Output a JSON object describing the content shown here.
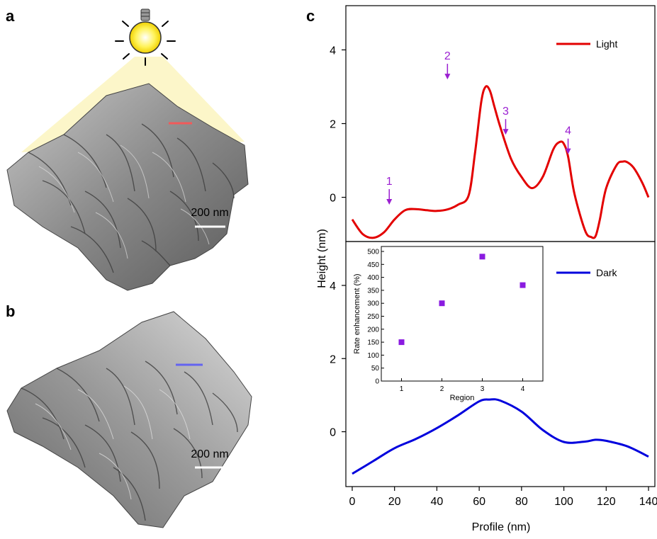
{
  "panels": {
    "a": {
      "letter": "a",
      "scale_bar_label": "200 nm",
      "marker_color": "#f25a5a"
    },
    "b": {
      "letter": "b",
      "scale_bar_label": "200 nm",
      "marker_color": "#6464f0"
    },
    "c": {
      "letter": "c"
    }
  },
  "chart_data": [
    {
      "id": "light-profile",
      "type": "line",
      "series": [
        {
          "name": "Light",
          "color": "#e30000",
          "x": [
            0,
            5,
            10,
            15,
            20,
            25,
            30,
            35,
            40,
            45,
            50,
            55,
            58,
            61,
            63,
            65,
            67,
            70,
            75,
            80,
            85,
            90,
            95,
            98,
            100,
            102,
            105,
            110,
            113,
            115,
            117,
            120,
            125,
            128,
            130,
            133,
            137,
            140
          ],
          "y": [
            -0.6,
            -1.0,
            -1.1,
            -0.95,
            -0.6,
            -0.35,
            -0.32,
            -0.35,
            -0.37,
            -0.33,
            -0.2,
            0.05,
            1.2,
            2.6,
            3.0,
            2.9,
            2.5,
            1.9,
            1.05,
            0.55,
            0.25,
            0.55,
            1.3,
            1.5,
            1.45,
            1.1,
            0.1,
            -0.9,
            -1.08,
            -1.05,
            -0.6,
            0.25,
            0.88,
            0.97,
            0.95,
            0.8,
            0.4,
            0.0
          ]
        }
      ],
      "annotations": [
        {
          "label": "1",
          "x": 17.5,
          "y": -0.2
        },
        {
          "label": "2",
          "x": 45,
          "y": 3.2
        },
        {
          "label": "3",
          "x": 72.5,
          "y": 1.7
        },
        {
          "label": "4",
          "x": 102,
          "y": 1.17
        }
      ],
      "annotation_color": "#9b1fd1",
      "ylim": [
        -1.2,
        5.2
      ],
      "xlim": [
        -3,
        143
      ],
      "yticks": [
        0,
        2,
        4
      ],
      "legend_position": "top-right"
    },
    {
      "id": "dark-profile",
      "type": "line",
      "series": [
        {
          "name": "Dark",
          "color": "#0000dd",
          "x": [
            0,
            10,
            20,
            30,
            40,
            50,
            60,
            65,
            70,
            80,
            90,
            100,
            110,
            115,
            120,
            130,
            140
          ],
          "y": [
            -1.15,
            -0.8,
            -0.45,
            -0.2,
            0.1,
            0.45,
            0.83,
            0.88,
            0.85,
            0.55,
            0.05,
            -0.28,
            -0.27,
            -0.22,
            -0.25,
            -0.4,
            -0.68
          ]
        }
      ],
      "xlabel": "Profile (nm)",
      "ylabel": "Height (nm)",
      "xlim": [
        -3,
        143
      ],
      "ylim": [
        -1.5,
        5.2
      ],
      "xticks": [
        0,
        20,
        40,
        60,
        80,
        100,
        120,
        140
      ],
      "yticks": [
        0,
        2,
        4
      ],
      "legend_position": "top-right"
    },
    {
      "id": "rate-inset",
      "type": "scatter",
      "series": [
        {
          "color": "#8a1be0",
          "x": [
            1,
            2,
            3,
            4
          ],
          "y": [
            150,
            300,
            480,
            370
          ]
        }
      ],
      "xlabel": "Region",
      "ylabel": "Rate enhancement (%)",
      "xlim": [
        0.5,
        4.5
      ],
      "ylim": [
        0,
        500
      ],
      "xticks": [
        1,
        2,
        3,
        4
      ],
      "yticks": [
        0,
        50,
        100,
        150,
        200,
        250,
        300,
        350,
        400,
        450,
        500
      ]
    }
  ],
  "icons": {
    "bulb": "light-bulb-icon"
  }
}
